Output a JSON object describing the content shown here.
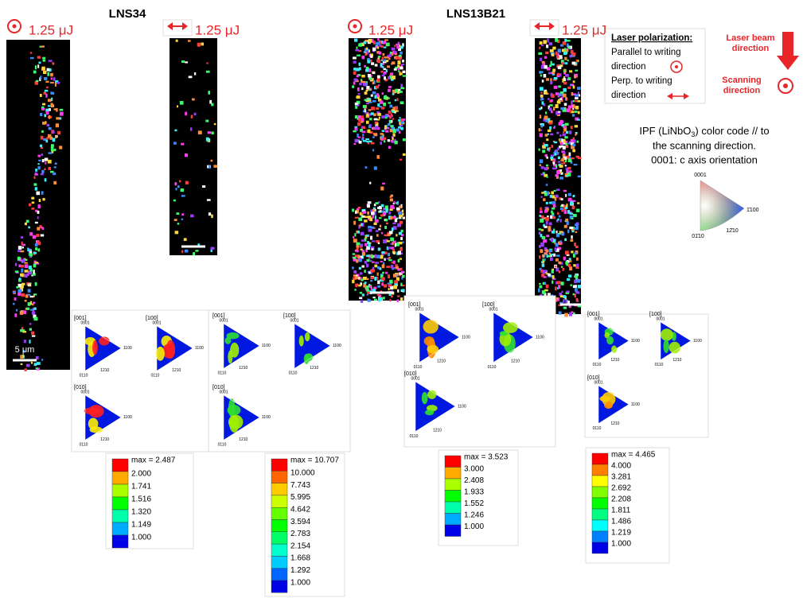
{
  "samples": [
    "LNS34",
    "LNS13B21"
  ],
  "energy_labels": [
    "1.25 μJ",
    "1.25 μJ",
    "1.25 μJ",
    "1.25 μJ"
  ],
  "scale_bar": "5 μm",
  "legend": {
    "title": "Laser polarization:",
    "parallel": [
      "Parallel to writing",
      "direction"
    ],
    "perpendicular": [
      "Perp. to writing",
      "direction"
    ],
    "beam": [
      "Laser beam",
      "direction"
    ],
    "scanning": [
      "Scanning",
      "direction"
    ]
  },
  "ipf": {
    "caption_start": "IPF (LiNbO",
    "subscript": "3",
    "caption_end": ") color code // to",
    "caption_lines": [
      "the scanning direction.",
      "0001: c axis orientation"
    ],
    "poles": [
      "0001",
      "1̄100",
      "01̄10",
      "12̄10"
    ]
  },
  "pole_figures": {
    "directions": [
      "[001]",
      "[100]",
      "[010]"
    ],
    "poles": [
      "0001",
      "1100",
      "0110",
      "1210"
    ]
  },
  "color_scales": [
    {
      "max": "max = 2.487",
      "levels": [
        "2.000",
        "1.741",
        "1.516",
        "1.320",
        "1.149",
        "1.000"
      ]
    },
    {
      "max": "max = 10.707",
      "levels": [
        "10.000",
        "7.743",
        "5.995",
        "4.642",
        "3.594",
        "2.783",
        "2.154",
        "1.668",
        "1.292",
        "1.000"
      ]
    },
    {
      "max": "max = 3.523",
      "levels": [
        "3.000",
        "2.408",
        "1.933",
        "1.552",
        "1.246",
        "1.000"
      ]
    },
    {
      "max": "max = 4.465",
      "levels": [
        "4.000",
        "3.281",
        "2.692",
        "2.208",
        "1.811",
        "1.486",
        "1.219",
        "1.000"
      ]
    }
  ]
}
